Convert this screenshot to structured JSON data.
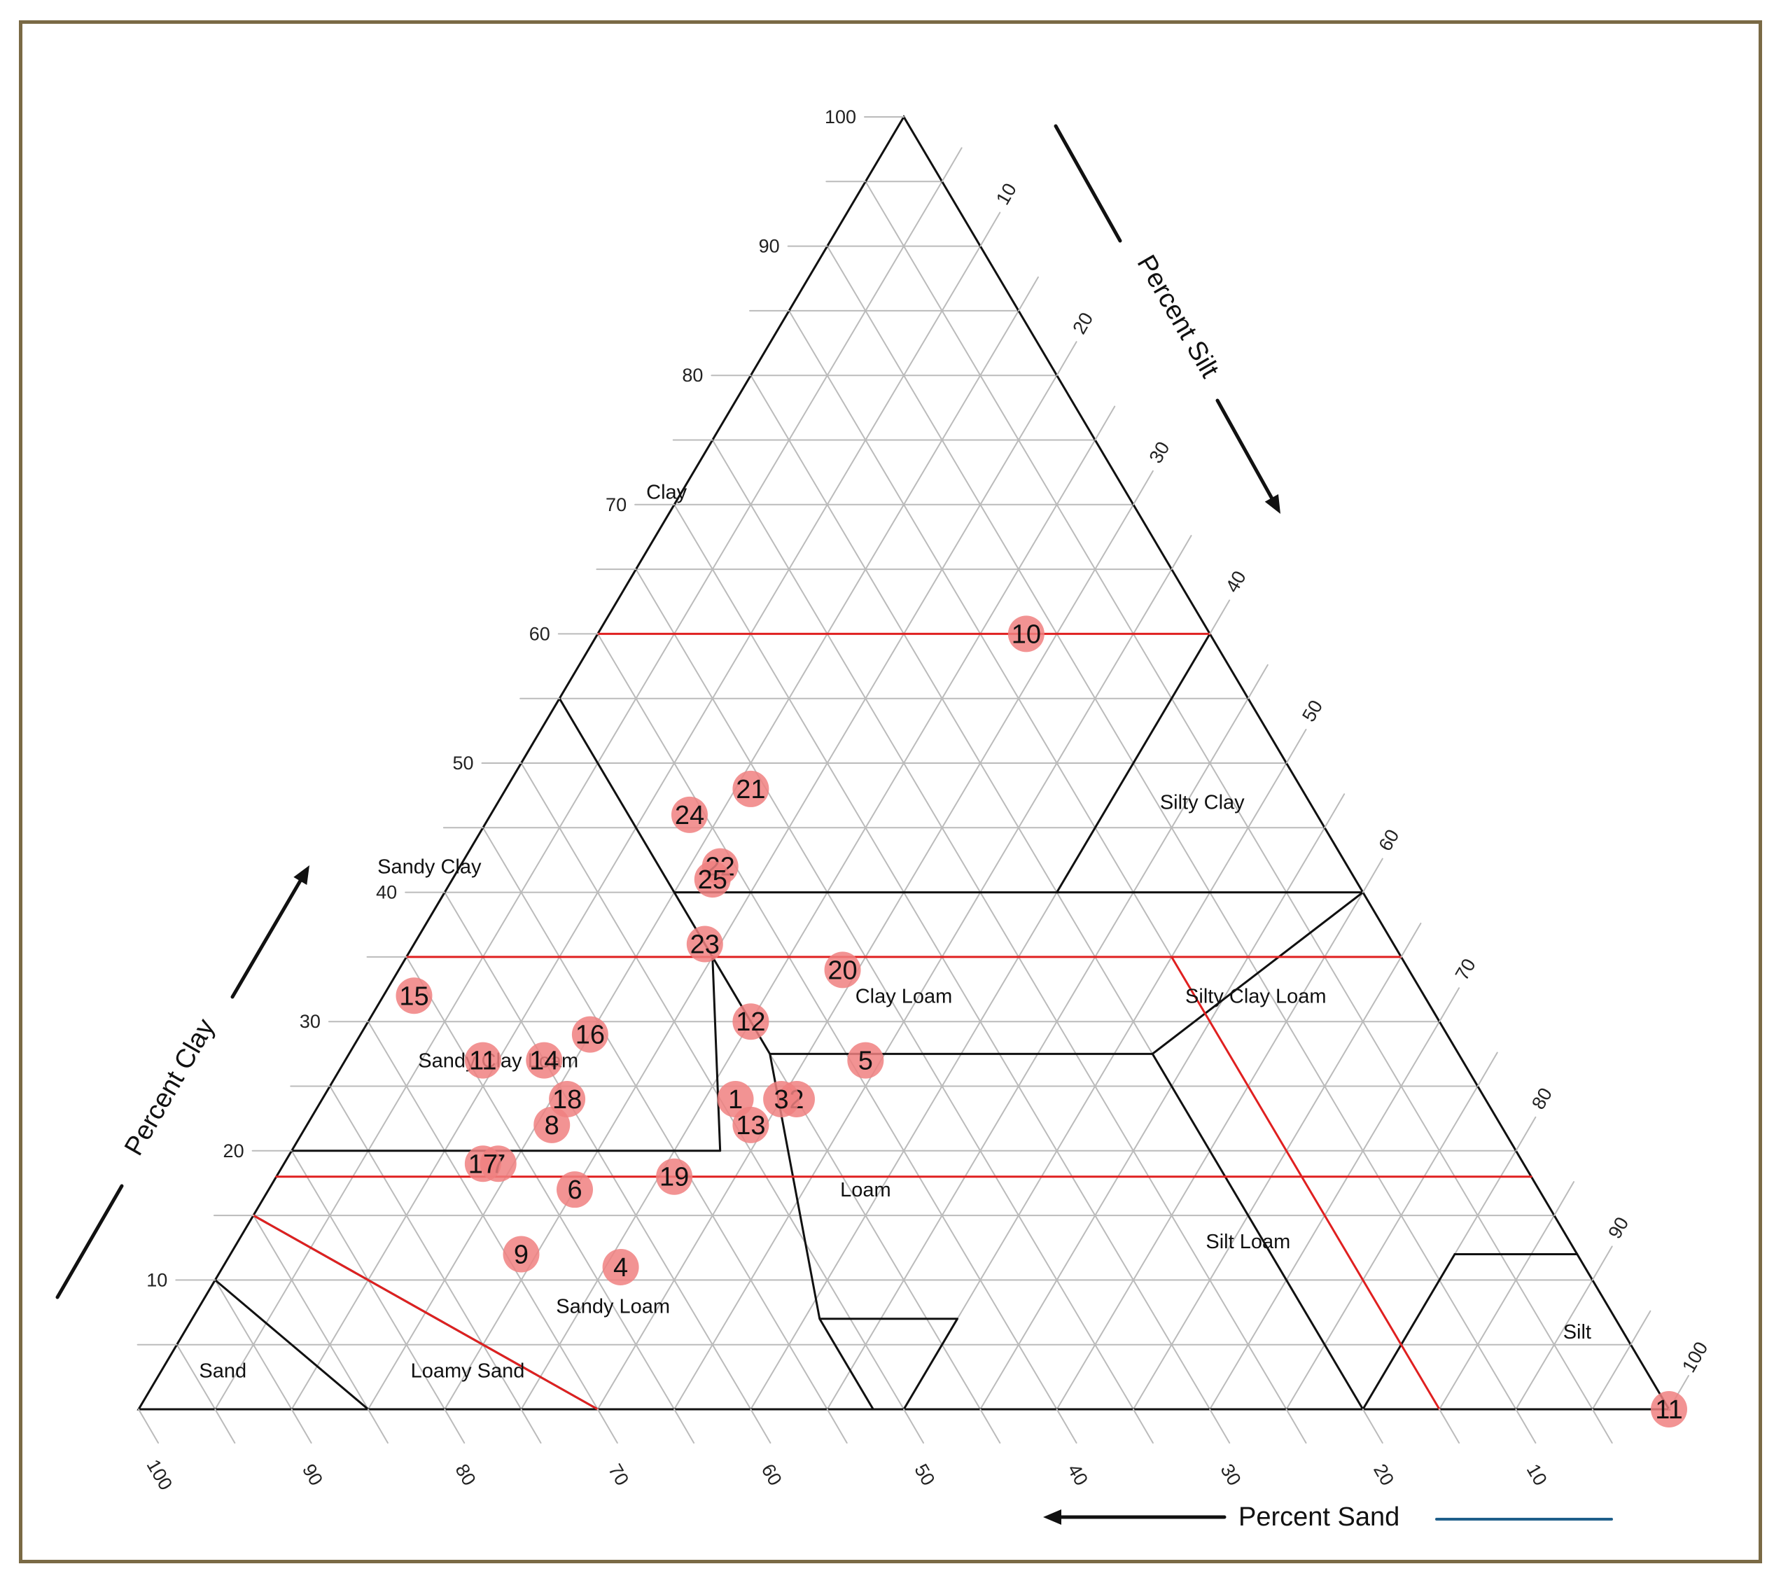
{
  "chart_data": {
    "type": "scatter",
    "subtype": "soil-texture-ternary",
    "axes": {
      "clay": {
        "label": "Percent Clay",
        "ticks": [
          10,
          20,
          30,
          40,
          50,
          60,
          70,
          80,
          90,
          100
        ]
      },
      "silt": {
        "label": "Percent Silt",
        "ticks": [
          10,
          20,
          30,
          40,
          50,
          60,
          70,
          80,
          90,
          100
        ]
      },
      "sand": {
        "label": "Percent Sand",
        "ticks": [
          100,
          90,
          80,
          70,
          60,
          50,
          40,
          30,
          20,
          10
        ]
      }
    },
    "grid": true,
    "regions": [
      {
        "name": "Clay",
        "label": "Clay"
      },
      {
        "name": "Silty Clay",
        "label": "Silty Clay"
      },
      {
        "name": "Sandy Clay",
        "label": "Sandy Clay"
      },
      {
        "name": "Clay Loam",
        "label": "Clay Loam"
      },
      {
        "name": "Silty Clay Loam",
        "label": "Silty Clay Loam"
      },
      {
        "name": "Sandy Clay Loam",
        "label": "Sandy Clay Loam"
      },
      {
        "name": "Loam",
        "label": "Loam"
      },
      {
        "name": "Silt Loam",
        "label": "Silt Loam"
      },
      {
        "name": "Sandy Loam",
        "label": "Sandy Loam"
      },
      {
        "name": "Silt",
        "label": "Silt"
      },
      {
        "name": "Loamy Sand",
        "label": "Loamy Sand"
      },
      {
        "name": "Sand",
        "label": "Sand"
      }
    ],
    "reference_lines": [
      {
        "kind": "clay",
        "value": 60
      },
      {
        "kind": "clay",
        "value": 35
      },
      {
        "kind": "clay",
        "value": 18
      },
      {
        "kind": "sand-vs-clay",
        "from": {
          "sand": 85,
          "clay": 15
        },
        "to": {
          "sand": 70,
          "clay": 0
        }
      },
      {
        "kind": "sand-vs-clay",
        "from": {
          "sand": 15,
          "clay": 35
        },
        "to": {
          "sand": 15,
          "clay": 0
        }
      }
    ],
    "points": [
      {
        "label": "1",
        "clay": 24,
        "sand": 49,
        "silt": 27
      },
      {
        "label": "2",
        "clay": 24,
        "sand": 45,
        "silt": 31
      },
      {
        "label": "3",
        "clay": 24,
        "sand": 46,
        "silt": 30
      },
      {
        "label": "4",
        "clay": 11,
        "sand": 63,
        "silt": 26
      },
      {
        "label": "5",
        "clay": 27,
        "sand": 39,
        "silt": 34
      },
      {
        "label": "6",
        "clay": 17,
        "sand": 63,
        "silt": 20
      },
      {
        "label": "7",
        "clay": 19,
        "sand": 67,
        "silt": 14
      },
      {
        "label": "8",
        "clay": 22,
        "sand": 62,
        "silt": 16
      },
      {
        "label": "9",
        "clay": 12,
        "sand": 69,
        "silt": 19
      },
      {
        "label": "10",
        "clay": 60,
        "sand": 12,
        "silt": 28
      },
      {
        "label": "11",
        "clay": 27,
        "sand": 64,
        "silt": 9
      },
      {
        "label": "12",
        "clay": 30,
        "sand": 45,
        "silt": 25
      },
      {
        "label": "13",
        "clay": 22,
        "sand": 49,
        "silt": 29
      },
      {
        "label": "14",
        "clay": 27,
        "sand": 60,
        "silt": 13
      },
      {
        "label": "15",
        "clay": 32,
        "sand": 66,
        "silt": 2
      },
      {
        "label": "16",
        "clay": 29,
        "sand": 56,
        "silt": 15
      },
      {
        "label": "17",
        "clay": 19,
        "sand": 68,
        "silt": 13
      },
      {
        "label": "18",
        "clay": 24,
        "sand": 60,
        "silt": 16
      },
      {
        "label": "19",
        "clay": 18,
        "sand": 56,
        "silt": 26
      },
      {
        "label": "20",
        "clay": 34,
        "sand": 37,
        "silt": 29
      },
      {
        "label": "21",
        "clay": 48,
        "sand": 36,
        "silt": 16
      },
      {
        "label": "22",
        "clay": 42,
        "sand": 41,
        "silt": 17
      },
      {
        "label": "23",
        "clay": 36,
        "sand": 45,
        "silt": 19
      },
      {
        "label": "24",
        "clay": 46,
        "sand": 41,
        "silt": 13
      },
      {
        "label": "25",
        "clay": 41,
        "sand": 42,
        "silt": 17
      },
      {
        "label": "11",
        "clay": 0,
        "sand": 0,
        "silt": 100
      }
    ],
    "colors": {
      "point_fill": "#f08080",
      "reference_line": "#e02020",
      "boundary": "#111111",
      "grid": "#bbbbbb",
      "frame": "#7a6a45",
      "sand_legend_line": "#1f5f8b"
    }
  }
}
